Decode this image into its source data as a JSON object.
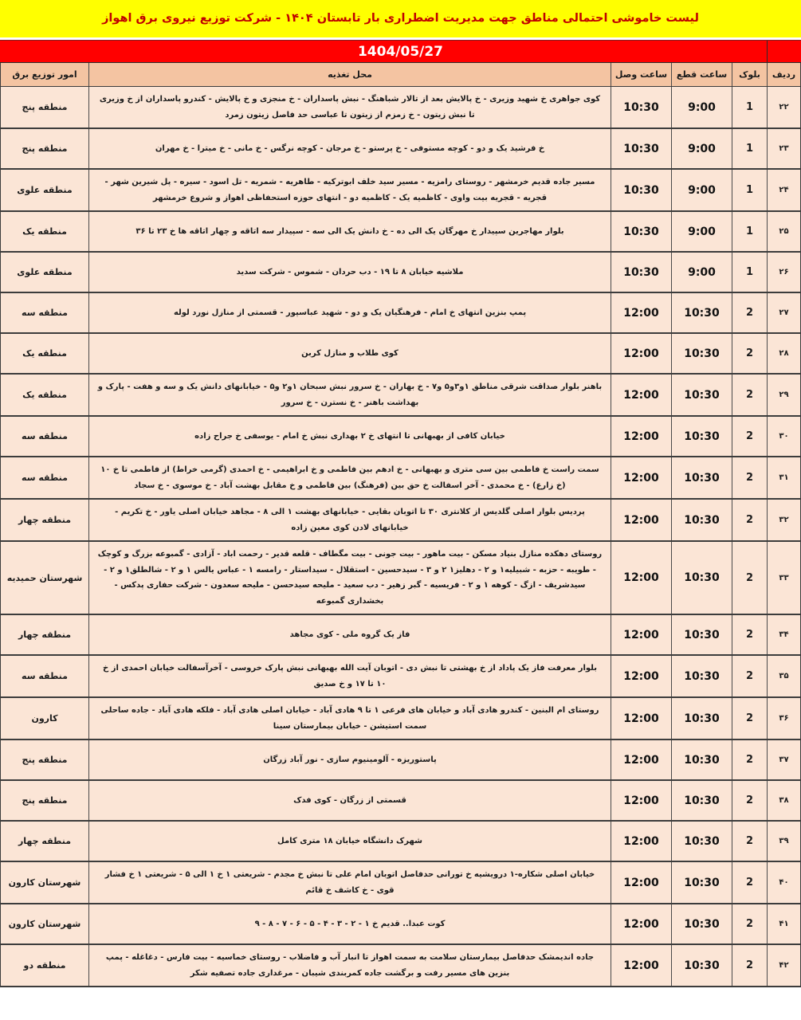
{
  "title": "لیست خاموشی احتمالی مناطق جهت مدیریت اضطراری بار تابستان ۱۴۰۴ - شرکت توزیع نیروی برق اهواز",
  "date": "1404/05/27",
  "colors": {
    "title_bg": "#FFFF00",
    "title_text": "#C00000",
    "date_bg": "#FF0000",
    "date_text": "#FFFFFF",
    "header_bg": "#F4C4A2",
    "row_bg": "#FBE5D6",
    "border": "#3C3C3C"
  },
  "columns": {
    "row": "ردیف",
    "block": "بلوک",
    "cut_time": "ساعت قطع",
    "reconnect_time": "ساعت وصل",
    "location": "محل تغذیه",
    "district": "امور توزیع برق"
  },
  "rows": [
    {
      "row": "۲۲",
      "block": "1",
      "cut_time": "9:00",
      "reconnect_time": "10:30",
      "district": "منطقه پنج",
      "location": "کوی جواهری خ شهید وزیری - خ پالایش بعد از تالار شباهنگ - نبش پاسداران - خ منجزی و خ پالایش - کندرو پاسداران از خ وزیری تا نبش زیتون - خ زمزم از زیتون تا عباسی حد فاصل زیتون زمرد"
    },
    {
      "row": "۲۳",
      "block": "1",
      "cut_time": "9:00",
      "reconnect_time": "10:30",
      "district": "منطقه پنج",
      "location": "خ فرشید یک و دو - کوچه مستوفی - خ پرستو - خ مرجان - کوچه نرگس - خ مانی - خ میترا - خ مهران"
    },
    {
      "row": "۲۴",
      "block": "1",
      "cut_time": "9:00",
      "reconnect_time": "10:30",
      "district": "منطقه علوی",
      "location": "مسیر جاده قدیم خرمشهر - روستای رامزیه - مسیر سید خلف ابوترکیه - طاهریه - شمریه - تل اسود - سیره - پل شیرین شهر - قجریه - قجریه بیت واوی - کاظمیه یک - کاظمیه دو - انتهای حوزه استحفاظی اهواز و شروع خرمشهر"
    },
    {
      "row": "۲۵",
      "block": "1",
      "cut_time": "9:00",
      "reconnect_time": "10:30",
      "district": "منطقه یک",
      "location": "بلوار مهاجرین سپیدار خ مهرگان یک الی ده - خ دانش یک الی سه - سپیدار سه اتاقه و چهار اتاقه ها خ ۲۳ تا ۳۶"
    },
    {
      "row": "۲۶",
      "block": "1",
      "cut_time": "9:00",
      "reconnect_time": "10:30",
      "district": "منطقه علوی",
      "location": "ملاشیه خیابان ۸ تا ۱۹ - دب حردان - شموس - شرکت سدید"
    },
    {
      "row": "۲۷",
      "block": "2",
      "cut_time": "10:30",
      "reconnect_time": "12:00",
      "district": "منطقه سه",
      "location": "پمپ بنزین انتهای خ امام - فرهنگیان یک و دو - شهید عباسپور - قسمتی از منازل نورد لوله"
    },
    {
      "row": "۲۸",
      "block": "2",
      "cut_time": "10:30",
      "reconnect_time": "12:00",
      "district": "منطقه یک",
      "location": "کوی طلاب و منازل کربن"
    },
    {
      "row": "۲۹",
      "block": "2",
      "cut_time": "10:30",
      "reconnect_time": "12:00",
      "district": "منطقه یک",
      "location": "باهنر بلوار صداقت شرقی مناطق ۱و۳و۵ و۷ - خ بهاران - خ سرور نبش سبحان ۱و۲ و۵ - خیابانهای دانش یک و سه و هفت - پارک و بهداشت باهنر - خ نسترن - خ سرور"
    },
    {
      "row": "۳۰",
      "block": "2",
      "cut_time": "10:30",
      "reconnect_time": "12:00",
      "district": "منطقه سه",
      "location": "خیابان کافی از بهبهانی تا انتهای خ ۲ بهداری نبش خ امام - یوسفی خ جراح زاده"
    },
    {
      "row": "۳۱",
      "block": "2",
      "cut_time": "10:30",
      "reconnect_time": "12:00",
      "district": "منطقه سه",
      "location": "سمت راست خ فاطمی بین سی متری و بهبهانی - خ ادهم بین فاطمی و خ ابراهیمی - خ احمدی (گرمی خراط) از فاطمی تا خ ۱۰ (خ زارع) - خ محمدی - آخر اسفالت خ حق بین (فرهنگ) بین فاطمی و خ مقابل بهشت آباد - خ موسوی - خ سجاد"
    },
    {
      "row": "۳۲",
      "block": "2",
      "cut_time": "10:30",
      "reconnect_time": "12:00",
      "district": "منطقه چهار",
      "location": "پردیس بلوار اصلی گلدیس از کلانتری ۳۰ تا اتوبان بقایی - خیابانهای بهشت ۱ الی ۸ - مجاهد خیابان اصلی یاور - خ تکریم - خیابانهای لادن کوی معین زاده"
    },
    {
      "row": "۳۳",
      "block": "2",
      "cut_time": "10:30",
      "reconnect_time": "12:00",
      "district": "شهرستان حمیدیه",
      "location": "روستای دهکده منازل بنیاد مسکن - بیت ماهور - بیت جونی - بیت مگطاف - قلعه قدیر - رحمت اباد - آزادی - گمبوعه بزرگ و کوچک - طویبه - حزبه - شبیلیه۱ و ۲ - دهلیز۱ ۲ و ۳ - سیدحسین - استقلال - سیداستار - رامسه ۱ - عباس یالس ۱ و ۲ - شالطلق۱ و ۲ - سیدشریف - ازگ - کوهه ۱ و ۲ - فریسیه - گبر زهیر - دب سعید - ملیحه سیدحسن - ملیحه سعدون - شرکت حفاری پدکس - بخشداری گمبوعه"
    },
    {
      "row": "۳۴",
      "block": "2",
      "cut_time": "10:30",
      "reconnect_time": "12:00",
      "district": "منطقه چهار",
      "location": "فاز یک گروه ملی - کوی مجاهد"
    },
    {
      "row": "۳۵",
      "block": "2",
      "cut_time": "10:30",
      "reconnect_time": "12:00",
      "district": "منطقه سه",
      "location": "بلوار معرفت فاز یک پاداد از خ بهشتی تا نبش دی - اتوبان آیت الله بهبهانی نبش پارک خروسی - آخرآسفالت خیابان احمدی از خ ۱۰ تا ۱۷ و خ صدیق"
    },
    {
      "row": "۳۶",
      "block": "2",
      "cut_time": "10:30",
      "reconnect_time": "12:00",
      "district": "کارون",
      "location": "روستای ام البنین - کندرو هادی آباد و خیابان های فرعی ۱ تا ۹ هادی آباد - خیابان اصلی هادی آباد - فلکه هادی آباد - جاده ساحلی سمت استیشن - خیابان بیمارستان سینا"
    },
    {
      "row": "۳۷",
      "block": "2",
      "cut_time": "10:30",
      "reconnect_time": "12:00",
      "district": "منطقه پنج",
      "location": "پاستوریزه - آلومینیوم سازی - نور آباد زرگان"
    },
    {
      "row": "۳۸",
      "block": "2",
      "cut_time": "10:30",
      "reconnect_time": "12:00",
      "district": "منطقه پنج",
      "location": "قسمتی از زرگان - کوی فدک"
    },
    {
      "row": "۳۹",
      "block": "2",
      "cut_time": "10:30",
      "reconnect_time": "12:00",
      "district": "منطقه چهار",
      "location": "شهرک دانشگاه خیابان ۱۸ متری کامل"
    },
    {
      "row": "۴۰",
      "block": "2",
      "cut_time": "10:30",
      "reconnect_time": "12:00",
      "district": "شهرستان کارون",
      "location": "خیابان اصلی شکاره-۱ درویشیه خ تورانی حدفاصل اتوبان امام علی تا نبش خ مجدم - شریعتی ۱ خ ۱ الی ۵ - شریعتی ۱ خ فشار قوی - خ کاشف خ قائم"
    },
    {
      "row": "۴۱",
      "block": "2",
      "cut_time": "10:30",
      "reconnect_time": "12:00",
      "district": "شهرستان کارون",
      "location": "کوت عبدا.. قدیم خ ۱ - ۲ - ۳ - ۴ - ۵ - ۶ - ۷ - ۸ - ۹"
    },
    {
      "row": "۴۲",
      "block": "2",
      "cut_time": "10:30",
      "reconnect_time": "12:00",
      "district": "منطقه دو",
      "location": "جاده اندیمشک حدفاصل بیمارستان سلامت به سمت اهواز تا انبار آب و فاضلاب - روستای خماسیه - بیت فارس - دغاغله - پمپ بنزین های مسیر رفت و برگشت جاده کمربندی شیبان - مرغداری جاده تصفیه شکر"
    }
  ]
}
